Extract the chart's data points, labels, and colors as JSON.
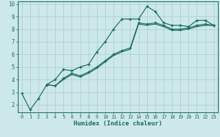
{
  "xlabel": "Humidex (Indice chaleur)",
  "bg_color": "#cde8ea",
  "grid_color": "#aecfd2",
  "line_color": "#1a6b5e",
  "xlim": [
    -0.5,
    23.5
  ],
  "ylim": [
    1.4,
    10.2
  ],
  "xticks": [
    0,
    1,
    2,
    3,
    4,
    5,
    6,
    7,
    8,
    9,
    10,
    11,
    12,
    13,
    14,
    15,
    16,
    17,
    18,
    19,
    20,
    21,
    22,
    23
  ],
  "yticks": [
    2,
    3,
    4,
    5,
    6,
    7,
    8,
    9,
    10
  ],
  "line1_x": [
    0,
    1,
    2,
    3,
    4,
    5,
    6,
    7,
    8,
    9,
    10,
    11,
    12,
    13,
    14,
    15,
    16,
    17,
    18,
    19,
    20,
    21,
    22,
    23
  ],
  "line1_y": [
    2.9,
    1.6,
    2.5,
    3.6,
    4.0,
    4.8,
    4.7,
    5.0,
    5.2,
    6.2,
    7.0,
    8.0,
    8.8,
    8.8,
    8.8,
    9.8,
    9.4,
    8.5,
    8.3,
    8.3,
    8.2,
    8.7,
    8.7,
    8.3
  ],
  "line2_x": [
    3,
    4,
    5,
    6,
    7,
    8,
    9,
    10,
    11,
    12,
    13,
    14,
    15,
    16,
    17,
    18,
    19,
    20,
    21,
    22,
    23
  ],
  "line2_y": [
    3.6,
    3.5,
    4.1,
    4.5,
    4.3,
    4.6,
    5.0,
    5.5,
    6.0,
    6.3,
    6.5,
    8.5,
    8.4,
    8.5,
    8.3,
    8.0,
    8.0,
    8.1,
    8.3,
    8.4,
    8.3
  ],
  "line3_x": [
    3,
    4,
    5,
    6,
    7,
    8,
    9,
    10,
    11,
    12,
    13,
    14,
    15,
    16,
    17,
    18,
    19,
    20,
    21,
    22,
    23
  ],
  "line3_y": [
    3.6,
    3.5,
    4.0,
    4.4,
    4.2,
    4.5,
    4.9,
    5.4,
    5.9,
    6.2,
    6.4,
    8.4,
    8.3,
    8.4,
    8.2,
    7.9,
    7.9,
    8.0,
    8.2,
    8.3,
    8.3
  ]
}
